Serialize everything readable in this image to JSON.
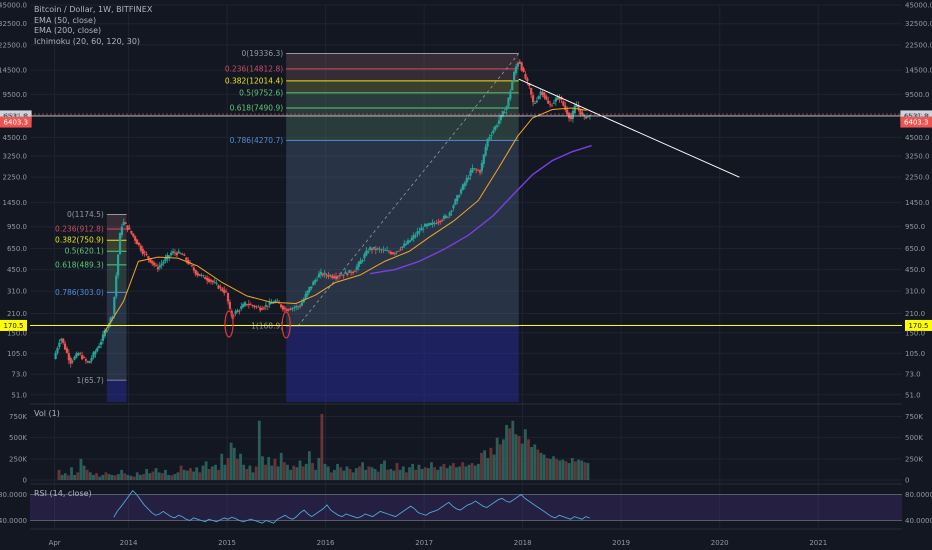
{
  "header": {
    "title": "Bitcoin / Dollar, 1W, BITFINEX",
    "indicators": [
      "EMA (50, close)",
      "EMA (200, close)",
      "Ichimoku (20, 60, 120, 30)"
    ]
  },
  "colors": {
    "background": "#131722",
    "grid": "#1f2330",
    "text": "#9598a1",
    "up": "#26a69a",
    "down": "#ef5350",
    "ema50": "#f5a623",
    "ema200": "#7b3fe4",
    "fib_blue": "#4f8fd6",
    "fib_green": "#5ec97a",
    "fib_yellow": "#e6e619",
    "fib_red": "#c94e5e",
    "support": "#ffff00",
    "trendline": "#ffffff",
    "last_price": "#ef5350",
    "current_line": "#cfd2d8"
  },
  "chart_data": {
    "type": "candlestick",
    "scale": "log",
    "price_axis": {
      "ticks": [
        "45000.0",
        "32500.0",
        "22500.0",
        "14500.0",
        "9500.0",
        "6500.0",
        "4500.0",
        "3250.0",
        "2250.0",
        "1450.0",
        "950.0",
        "650.0",
        "450.0",
        "310.0",
        "210.0",
        "150.0",
        "105.0",
        "73.0",
        "51.0"
      ],
      "ylim": [
        45,
        45000
      ]
    },
    "time_axis": {
      "ticks": [
        "Apr",
        "2014",
        "2015",
        "2016",
        "2017",
        "2018",
        "2019",
        "2020",
        "2021"
      ],
      "xlim": [
        2013.0,
        2021.85
      ]
    },
    "price_labels": {
      "current": "6531.8",
      "last": "6403.3",
      "support": "170.5"
    },
    "support_level": 170.5,
    "current_price": 6531.8,
    "fib_2013": {
      "levels": [
        {
          "label": "0(1174.5)",
          "value": 1174.5,
          "color": "#9598a1"
        },
        {
          "label": "0.236(912.8)",
          "value": 912.8,
          "color": "#c94e5e"
        },
        {
          "label": "0.382(750.9)",
          "value": 750.9,
          "color": "#e6e619"
        },
        {
          "label": "0.5(620.1)",
          "value": 620.1,
          "color": "#5ec97a"
        },
        {
          "label": "0.618(489.3)",
          "value": 489.3,
          "color": "#5ec97a"
        },
        {
          "label": "0.786(303.0)",
          "value": 303.0,
          "color": "#4f8fd6"
        },
        {
          "label": "1(65.7)",
          "value": 65.7,
          "color": "#9598a1"
        }
      ],
      "t_start": 2013.78,
      "t_end": 2013.98
    },
    "fib_2015": {
      "levels": [
        {
          "label": "0(19336.3)",
          "value": 19336.3,
          "color": "#9598a1"
        },
        {
          "label": "0.236(14812.8)",
          "value": 14812.8,
          "color": "#c94e5e"
        },
        {
          "label": "0.382(12014.4)",
          "value": 12014.4,
          "color": "#e6e619"
        },
        {
          "label": "0.5(9752.6)",
          "value": 9752.6,
          "color": "#5ec97a"
        },
        {
          "label": "0.618(7490.9)",
          "value": 7490.9,
          "color": "#5ec97a"
        },
        {
          "label": "0.786(4270.7)",
          "value": 4270.7,
          "color": "#4f8fd6"
        },
        {
          "label": "1(168.9)",
          "value": 168.9,
          "color": "#9598a1"
        }
      ],
      "t_start": 2015.6,
      "t_end": 2017.96
    },
    "trendline": {
      "points": [
        [
          2017.96,
          12400
        ],
        [
          2020.2,
          2250
        ]
      ]
    },
    "ema50": [
      [
        2013.75,
        150
      ],
      [
        2013.95,
        260
      ],
      [
        2014.1,
        520
      ],
      [
        2014.3,
        560
      ],
      [
        2014.5,
        550
      ],
      [
        2014.7,
        480
      ],
      [
        2014.95,
        360
      ],
      [
        2015.2,
        285
      ],
      [
        2015.45,
        255
      ],
      [
        2015.7,
        250
      ],
      [
        2015.9,
        290
      ],
      [
        2016.1,
        360
      ],
      [
        2016.35,
        410
      ],
      [
        2016.6,
        520
      ],
      [
        2016.85,
        620
      ],
      [
        2017.05,
        790
      ],
      [
        2017.3,
        1050
      ],
      [
        2017.55,
        1500
      ],
      [
        2017.75,
        2600
      ],
      [
        2017.95,
        4600
      ],
      [
        2018.1,
        6300
      ],
      [
        2018.3,
        7300
      ],
      [
        2018.5,
        7500
      ],
      [
        2018.65,
        7200
      ]
    ],
    "ema200": [
      [
        2016.45,
        420
      ],
      [
        2016.7,
        450
      ],
      [
        2016.95,
        520
      ],
      [
        2017.2,
        640
      ],
      [
        2017.45,
        820
      ],
      [
        2017.7,
        1150
      ],
      [
        2017.9,
        1650
      ],
      [
        2018.1,
        2350
      ],
      [
        2018.3,
        3000
      ],
      [
        2018.5,
        3500
      ],
      [
        2018.7,
        3900
      ]
    ],
    "volume": {
      "ticks": [
        "750K",
        "500K",
        "250K",
        "0"
      ],
      "ylim": [
        0,
        850
      ],
      "panel_label": "Vol (1)",
      "bars_k": [
        120,
        60,
        80,
        55,
        150,
        60,
        90,
        250,
        170,
        120,
        90,
        60,
        80,
        40,
        60,
        90,
        70,
        60,
        55,
        70,
        120,
        80,
        60,
        50,
        40,
        90,
        60,
        70,
        130,
        80,
        100,
        140,
        90,
        80,
        120,
        60,
        55,
        70,
        90,
        170,
        120,
        110,
        140,
        100,
        150,
        90,
        170,
        220,
        130,
        160,
        180,
        120,
        310,
        180,
        260,
        440,
        380,
        250,
        310,
        180,
        130,
        170,
        90,
        160,
        700,
        280,
        180,
        270,
        170,
        250,
        160,
        320,
        210,
        180,
        120,
        170,
        150,
        230,
        160,
        190,
        340,
        200,
        120,
        260,
        780,
        190,
        160,
        90,
        120,
        190,
        150,
        110,
        160,
        130,
        90,
        140,
        160,
        210,
        120,
        160,
        150,
        130,
        100,
        190,
        230,
        120,
        130,
        110,
        200,
        120,
        160,
        90,
        150,
        190,
        120,
        180,
        130,
        150,
        140,
        210,
        150,
        120,
        160,
        190,
        140,
        170,
        200,
        150,
        160,
        210,
        160,
        180,
        200,
        170,
        190,
        320,
        350,
        260,
        380,
        300,
        500,
        420,
        480,
        650,
        610,
        700,
        540,
        520,
        430,
        600,
        480,
        390,
        420,
        360,
        320,
        300,
        260,
        250,
        280,
        250,
        230,
        240,
        220,
        200,
        260,
        220,
        240,
        230,
        210,
        200
      ]
    },
    "rsi": {
      "ticks": [
        "80.0000",
        "40.0000"
      ],
      "panel_label": "RSI (14, close)",
      "ylim": [
        30,
        90
      ],
      "values": [
        45,
        55,
        62,
        70,
        78,
        86,
        80,
        72,
        64,
        58,
        52,
        48,
        50,
        54,
        50,
        46,
        44,
        48,
        46,
        42,
        40,
        44,
        42,
        40,
        38,
        42,
        40,
        38,
        41,
        44,
        42,
        45,
        43,
        40,
        38,
        40,
        42,
        40,
        38,
        36,
        40,
        38,
        36,
        42,
        45,
        48,
        44,
        42,
        46,
        52,
        56,
        50,
        46,
        50,
        54,
        58,
        64,
        56,
        52,
        48,
        46,
        50,
        48,
        46,
        44,
        46,
        50,
        48,
        46,
        50,
        54,
        52,
        50,
        48,
        46,
        50,
        54,
        58,
        62,
        58,
        52,
        50,
        48,
        52,
        54,
        56,
        60,
        64,
        68,
        62,
        58,
        56,
        60,
        64,
        66,
        70,
        66,
        62,
        60,
        64,
        68,
        72,
        74,
        70,
        68,
        72,
        76,
        80,
        74,
        70,
        66,
        62,
        58,
        54,
        50,
        46,
        44,
        48,
        46,
        44,
        42,
        46,
        44,
        42,
        46,
        44
      ]
    }
  }
}
